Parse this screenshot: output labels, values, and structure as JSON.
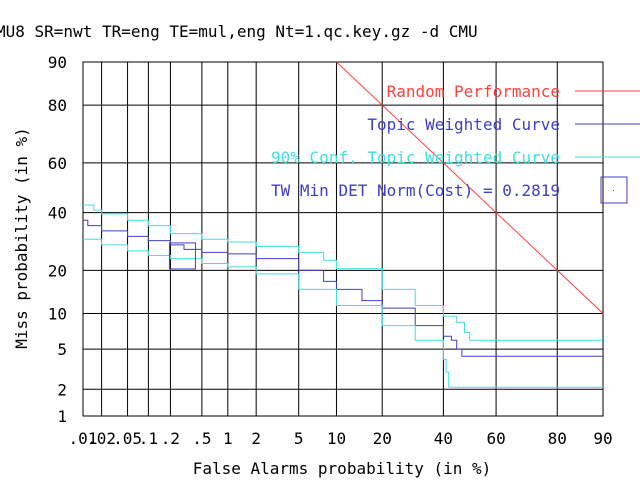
{
  "chart_data": {
    "type": "line",
    "title": "MU8 SR=nwt TR=eng TE=mul,eng Nt=1.qc.key.gz -d CMU",
    "xlabel": "False Alarms probability (in %)",
    "ylabel": "Miss probability (in %)",
    "x_scale": "normal-deviate (probit)",
    "y_scale": "normal-deviate (probit)",
    "xlim": [
      0.01,
      90
    ],
    "ylim": [
      1,
      90
    ],
    "grid": true,
    "legend_position": "top-right",
    "x_ticks": [
      {
        "value": 0.01,
        "label": ".01"
      },
      {
        "value": 0.02,
        "label": ".02"
      },
      {
        "value": 0.05,
        "label": ".05"
      },
      {
        "value": 0.1,
        "label": ".1"
      },
      {
        "value": 0.2,
        "label": ".2"
      },
      {
        "value": 0.5,
        "label": ".5"
      },
      {
        "value": 1,
        "label": "1"
      },
      {
        "value": 2,
        "label": "2"
      },
      {
        "value": 5,
        "label": "5"
      },
      {
        "value": 10,
        "label": "10"
      },
      {
        "value": 20,
        "label": "20"
      },
      {
        "value": 40,
        "label": "40"
      },
      {
        "value": 60,
        "label": "60"
      },
      {
        "value": 80,
        "label": "80"
      },
      {
        "value": 90,
        "label": "90"
      }
    ],
    "y_ticks": [
      {
        "value": 1,
        "label": "1"
      },
      {
        "value": 2,
        "label": "2"
      },
      {
        "value": 5,
        "label": "5"
      },
      {
        "value": 10,
        "label": "10"
      },
      {
        "value": 20,
        "label": "20"
      },
      {
        "value": 40,
        "label": "40"
      },
      {
        "value": 60,
        "label": "60"
      },
      {
        "value": 80,
        "label": "80"
      },
      {
        "value": 90,
        "label": "90"
      }
    ],
    "series": [
      {
        "name": "Random Performance",
        "color": "#ff4040",
        "points": [
          [
            10,
            90
          ],
          [
            90,
            10
          ]
        ]
      },
      {
        "name": "Topic Weighted Curve",
        "color": "#4040c0",
        "points": [
          [
            0.01,
            37
          ],
          [
            0.012,
            35
          ],
          [
            0.02,
            33
          ],
          [
            0.05,
            31
          ],
          [
            0.1,
            29.5
          ],
          [
            0.2,
            28
          ],
          [
            0.3,
            26.5
          ],
          [
            0.5,
            25.5
          ],
          [
            1,
            25
          ],
          [
            2,
            23.5
          ],
          [
            5,
            20
          ],
          [
            8,
            17
          ],
          [
            10,
            15
          ],
          [
            15,
            12.5
          ],
          [
            20,
            11
          ],
          [
            30,
            8
          ],
          [
            40,
            6.5
          ],
          [
            43,
            6
          ],
          [
            45,
            5
          ],
          [
            47,
            4.3
          ],
          [
            90,
            4.3
          ]
        ]
      },
      {
        "name": "90% Conf. Topic Weighted Curve",
        "color": "#40e0e0",
        "points": [
          [
            0.01,
            43
          ],
          [
            0.015,
            41
          ],
          [
            0.02,
            39.5
          ],
          [
            0.05,
            37
          ],
          [
            0.1,
            35
          ],
          [
            0.2,
            32
          ],
          [
            0.5,
            30
          ],
          [
            1,
            29
          ],
          [
            2,
            27.5
          ],
          [
            5,
            25.5
          ],
          [
            8,
            23
          ],
          [
            10,
            20.5
          ],
          [
            20,
            15
          ],
          [
            30,
            11.5
          ],
          [
            40,
            9.5
          ],
          [
            45,
            8.5
          ],
          [
            48,
            7
          ],
          [
            50,
            6
          ],
          [
            90,
            6
          ]
        ]
      },
      {
        "name": "",
        "color": "#40e0e0",
        "points": [
          [
            0.01,
            30
          ],
          [
            0.02,
            28
          ],
          [
            0.05,
            26
          ],
          [
            0.1,
            24.5
          ],
          [
            0.2,
            23.5
          ],
          [
            0.5,
            22
          ],
          [
            1,
            21
          ],
          [
            2,
            19
          ],
          [
            5,
            15
          ],
          [
            10,
            11.5
          ],
          [
            20,
            8
          ],
          [
            30,
            6
          ],
          [
            40,
            4
          ],
          [
            41,
            3
          ],
          [
            42,
            2.1
          ],
          [
            90,
            2.1
          ]
        ]
      }
    ],
    "min_det": {
      "label": "TW Min DET Norm(Cost) = 0.2819",
      "color": "#4040c0",
      "x": 0.2,
      "y": 25
    }
  }
}
